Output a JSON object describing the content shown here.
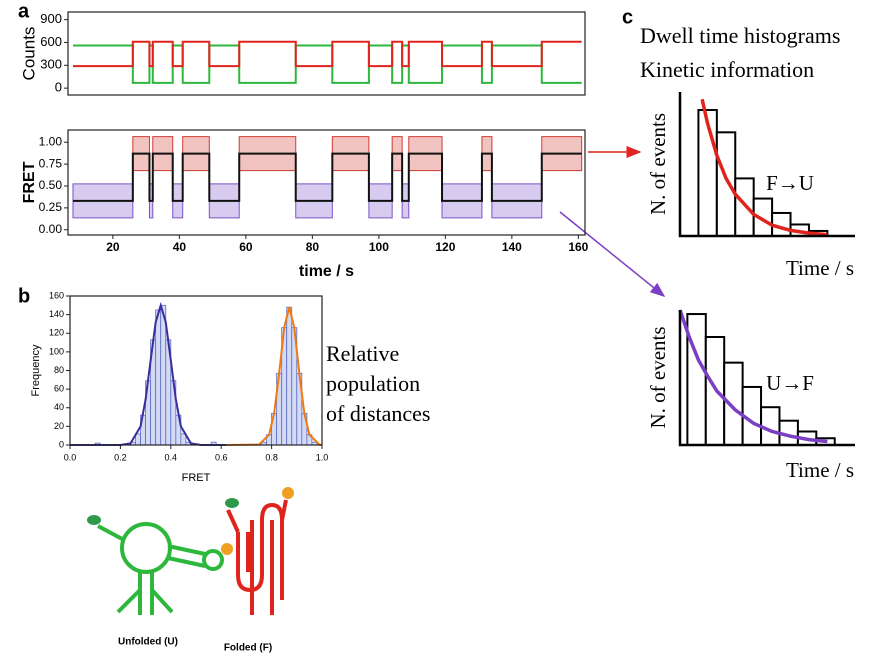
{
  "chart_data": [
    {
      "type": "line",
      "panel": "a",
      "ylabel": "Counts",
      "xlim": [
        6.5,
        162
      ],
      "ylim": [
        -90,
        1000
      ],
      "yticks": [
        0,
        300,
        600,
        900
      ],
      "x": [
        8,
        26,
        26,
        31,
        31,
        32,
        32,
        38,
        38,
        41,
        41,
        49,
        49,
        58,
        58,
        75,
        75,
        86,
        86,
        97,
        97,
        104,
        104,
        107,
        107,
        109,
        109,
        119,
        119,
        131,
        131,
        134,
        134,
        149,
        149,
        161
      ],
      "series": [
        {
          "color": "#2db83d",
          "values": [
            560,
            560,
            70,
            70,
            560,
            560,
            70,
            70,
            560,
            560,
            70,
            70,
            560,
            560,
            70,
            70,
            560,
            560,
            70,
            70,
            560,
            560,
            70,
            70,
            560,
            560,
            70,
            70,
            560,
            560,
            70,
            70,
            560,
            560,
            70,
            70
          ]
        },
        {
          "color": "#e0231c",
          "values": [
            290,
            290,
            610,
            610,
            290,
            290,
            610,
            610,
            290,
            290,
            610,
            610,
            290,
            290,
            610,
            610,
            290,
            290,
            610,
            610,
            290,
            290,
            610,
            610,
            290,
            290,
            610,
            610,
            290,
            290,
            610,
            610,
            290,
            290,
            610,
            610
          ]
        }
      ]
    },
    {
      "type": "line",
      "ylabel": "FRET",
      "xlabel": "time / s",
      "xlim": [
        6.5,
        162
      ],
      "ylim": [
        -0.06,
        1.14
      ],
      "yticks": [
        {
          "value": 0,
          "label": "0.00"
        },
        {
          "value": 0.25,
          "label": "0.25"
        },
        {
          "value": 0.5,
          "label": "0.50"
        },
        {
          "value": 0.75,
          "label": "0.75"
        },
        {
          "value": 1,
          "label": "1.00"
        }
      ],
      "xticks": [
        20,
        40,
        60,
        80,
        100,
        120,
        140,
        160
      ],
      "x": [
        8,
        26,
        26,
        31,
        31,
        32,
        32,
        38,
        38,
        41,
        41,
        49,
        49,
        58,
        58,
        75,
        75,
        86,
        86,
        97,
        97,
        104,
        104,
        107,
        107,
        109,
        109,
        119,
        119,
        131,
        131,
        134,
        134,
        149,
        149,
        161
      ],
      "series": [
        {
          "color": "#111111",
          "values": [
            0.33,
            0.33,
            0.87,
            0.87,
            0.33,
            0.33,
            0.87,
            0.87,
            0.33,
            0.33,
            0.87,
            0.87,
            0.33,
            0.33,
            0.87,
            0.87,
            0.33,
            0.33,
            0.87,
            0.87,
            0.33,
            0.33,
            0.87,
            0.87,
            0.33,
            0.33,
            0.87,
            0.87,
            0.33,
            0.33,
            0.87,
            0.87,
            0.33,
            0.33,
            0.87,
            0.87
          ]
        }
      ],
      "box_colors": [
        "#d03a32",
        "#7b52c9"
      ]
    },
    {
      "type": "histogram",
      "panel": "b",
      "ylabel": "Frequency",
      "xlabel": "FRET",
      "annotation": [
        "Relative",
        "population",
        "of distances"
      ],
      "xlim": [
        0,
        1
      ],
      "ylim": [
        0,
        160
      ],
      "xticks": [
        {
          "value": 0,
          "label": "0.0"
        },
        0.2,
        0.4,
        0.6,
        0.8,
        {
          "value": 1,
          "label": "1.0"
        }
      ],
      "yticks": [
        0,
        20,
        40,
        60,
        80,
        100,
        120,
        140,
        160
      ],
      "bins": [
        0,
        0.02,
        0.04,
        0.06,
        0.08,
        0.1,
        0.12,
        0.14,
        0.16,
        0.18,
        0.2,
        0.22,
        0.24,
        0.26,
        0.28,
        0.3,
        0.32,
        0.34,
        0.36,
        0.38,
        0.4,
        0.42,
        0.44,
        0.46,
        0.48,
        0.5,
        0.52,
        0.54,
        0.56,
        0.58,
        0.6,
        0.62,
        0.64,
        0.66,
        0.68,
        0.7,
        0.72,
        0.74,
        0.76,
        0.78,
        0.8,
        0.82,
        0.84,
        0.86,
        0.88,
        0.9,
        0.92,
        0.94,
        0.96,
        0.98,
        1
      ],
      "values": [
        0,
        0,
        0,
        0,
        0,
        2,
        0,
        0,
        0,
        0,
        0,
        0,
        3,
        12,
        32,
        69,
        113,
        145,
        150,
        113,
        69,
        32,
        12,
        3,
        0,
        0,
        0,
        0,
        3,
        0,
        0,
        0,
        0,
        0,
        0,
        0,
        0,
        0,
        3,
        11,
        34,
        77,
        126,
        148,
        126,
        77,
        34,
        11,
        3,
        0
      ],
      "color": "#5a6bc4",
      "bar_fill": "#d4daf4",
      "fits": [
        {
          "color": "#3a2e9c",
          "x": [
            0,
            0.2,
            0.24,
            0.28,
            0.3,
            0.32,
            0.34,
            0.36,
            0.38,
            0.4,
            0.42,
            0.44,
            0.48,
            0.52,
            0.62
          ],
          "values": [
            0,
            0.05,
            1.7,
            20,
            49,
            91,
            132,
            150,
            132,
            91,
            49,
            20,
            1.7,
            0.05,
            0
          ]
        },
        {
          "color": "#f07a10",
          "x": [
            0.62,
            0.75,
            0.79,
            0.81,
            0.83,
            0.85,
            0.87,
            0.89,
            0.91,
            0.93,
            0.95,
            0.99,
            1
          ],
          "values": [
            0,
            0.4,
            11,
            34,
            77,
            126,
            148,
            126,
            77,
            34,
            11,
            0.4,
            0
          ]
        }
      ],
      "molecules": [
        "Unfolded (U)",
        "Folded (F)"
      ]
    },
    {
      "type": "histogram",
      "panel": "c",
      "title": "Dwell time histograms",
      "subtitle": "Kinetic information",
      "annotation": [
        "F→U"
      ],
      "ylabel": "N. of events",
      "xlabel": "Time / s",
      "xlim": [
        0,
        9.5
      ],
      "ylim": [
        0,
        100
      ],
      "bins": [
        1,
        2,
        3,
        4,
        5,
        6,
        7,
        8
      ],
      "values": [
        87.5,
        72,
        40,
        26,
        16,
        8,
        3.5
      ],
      "color": "#000000",
      "bar_fill": "#ffffff",
      "fits": [
        {
          "color": "#e0231c",
          "x": [
            1.2,
            1.5,
            2,
            2.5,
            3,
            4,
            5,
            6,
            7,
            8
          ],
          "values": [
            95,
            78,
            56,
            40,
            29,
            15,
            7.5,
            3.9,
            2,
            1
          ]
        }
      ]
    },
    {
      "type": "histogram",
      "annotation": [
        "U→F"
      ],
      "ylabel": "N. of events",
      "xlabel": "Time / s",
      "xlim": [
        0,
        9.5
      ],
      "ylim": [
        0,
        100
      ],
      "bins": [
        0.4,
        1.4,
        2.4,
        3.4,
        4.4,
        5.4,
        6.4,
        7.4,
        8.4
      ],
      "values": [
        97,
        80,
        61,
        43,
        28,
        18,
        10,
        5
      ],
      "color": "#000000",
      "bar_fill": "#ffffff",
      "fits": [
        {
          "color": "#7b3fc4",
          "x": [
            0,
            0.5,
            1,
            1.5,
            2,
            3,
            4,
            5,
            6,
            7,
            8
          ],
          "values": [
            100,
            80,
            63,
            51,
            40,
            26,
            16,
            10,
            6.5,
            4,
            2.6
          ]
        }
      ]
    }
  ]
}
